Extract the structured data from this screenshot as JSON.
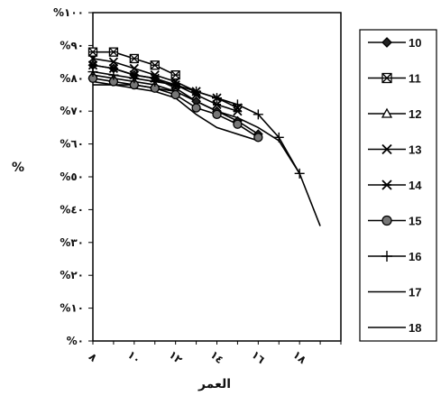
{
  "chart_data": {
    "type": "line",
    "xlabel": "العمر",
    "ylabel": "%",
    "x_ticks": [
      "٨",
      "١٠",
      "١٢",
      "١٤",
      "١٦",
      "١٨"
    ],
    "x_tick_values": [
      8,
      10,
      12,
      14,
      16,
      18
    ],
    "xlim": [
      8,
      20
    ],
    "y_ticks": [
      "%٠",
      "%١٠",
      "%٢٠",
      "%٣٠",
      "%٤٠",
      "%٥٠",
      "%٦٠",
      "%٧٠",
      "%٨٠",
      "%٩٠",
      "%١٠٠"
    ],
    "ylim": [
      0,
      100
    ],
    "grid": false,
    "legend_position": "right",
    "series": [
      {
        "name": "10",
        "marker": "diamond",
        "x": [
          8,
          9,
          10,
          11,
          12,
          13,
          14,
          15,
          16
        ],
        "y": [
          84,
          83,
          81,
          80,
          77,
          73,
          70,
          67,
          63
        ]
      },
      {
        "name": "11",
        "marker": "square-x",
        "x": [
          8,
          9,
          10,
          11,
          12
        ],
        "y": [
          88,
          88,
          86,
          84,
          81
        ]
      },
      {
        "name": "12",
        "marker": "triangle",
        "x": [
          8,
          9,
          10,
          11,
          12
        ],
        "y": [
          81,
          80,
          79,
          78,
          76
        ]
      },
      {
        "name": "13",
        "marker": "x",
        "x": [
          8,
          9,
          10,
          11,
          12,
          13,
          14,
          15
        ],
        "y": [
          86,
          85,
          83,
          81,
          79,
          76,
          74,
          71
        ]
      },
      {
        "name": "14",
        "marker": "asterisk",
        "x": [
          8,
          9,
          10,
          11,
          12,
          13,
          14,
          15
        ],
        "y": [
          84,
          83,
          81,
          80,
          78,
          75,
          72,
          70
        ]
      },
      {
        "name": "15",
        "marker": "circle",
        "x": [
          8,
          9,
          10,
          11,
          12,
          13,
          14,
          15,
          16
        ],
        "y": [
          80,
          79,
          78,
          77,
          75,
          71,
          69,
          66,
          62
        ]
      },
      {
        "name": "16",
        "marker": "plus",
        "x": [
          8,
          9,
          10,
          11,
          12,
          13,
          14,
          15,
          16,
          17,
          18
        ],
        "y": [
          82,
          81,
          80,
          79,
          78,
          76,
          74,
          72,
          69,
          62,
          51
        ]
      },
      {
        "name": "17",
        "marker": "none",
        "x": [
          8,
          9,
          10,
          11,
          12,
          13,
          14,
          15,
          16,
          17,
          18,
          19
        ],
        "y": [
          79,
          78,
          78,
          77,
          76,
          73,
          70,
          68,
          65,
          61,
          51,
          35
        ]
      },
      {
        "name": "18",
        "marker": "none",
        "x": [
          8,
          9,
          10,
          11,
          12,
          13,
          14,
          15,
          16
        ],
        "y": [
          78,
          78,
          77,
          76,
          74,
          69,
          65,
          63,
          61
        ]
      }
    ]
  }
}
